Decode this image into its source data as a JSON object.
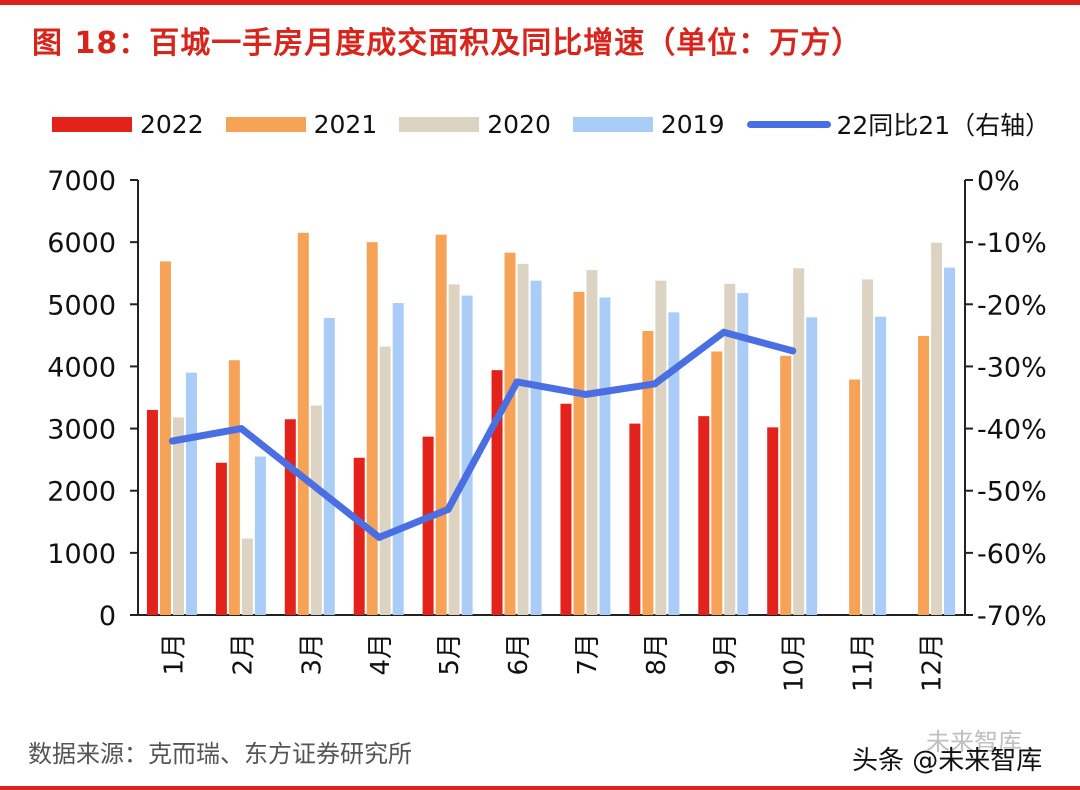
{
  "title": "图 18：百城一手房月度成交面积及同比增速（单位：万方）",
  "source": "数据来源：克而瑞、东方证券研究所",
  "watermark_top": "未来智库",
  "watermark_bottom": "头条 @未来智库",
  "colors": {
    "title": "#d9241b",
    "s2022": "#e3231b",
    "s2021": "#f6a358",
    "s2020": "#ddd3c2",
    "s2019": "#a9cdf7",
    "yoy": "#4a6fe3"
  },
  "legend": {
    "s2022": "2022",
    "s2021": "2021",
    "s2020": "2020",
    "s2019": "2019",
    "yoy": "22同比21（右轴）"
  },
  "chart_data": {
    "type": "bar",
    "categories": [
      "1月",
      "2月",
      "3月",
      "4月",
      "5月",
      "6月",
      "7月",
      "8月",
      "9月",
      "10月",
      "11月",
      "12月"
    ],
    "series": [
      {
        "name": "2022",
        "key": "s2022",
        "values": [
          3300,
          2450,
          3150,
          2530,
          2870,
          3940,
          3400,
          3080,
          3200,
          3020,
          null,
          null
        ]
      },
      {
        "name": "2021",
        "key": "s2021",
        "values": [
          5690,
          4100,
          6150,
          6000,
          6120,
          5830,
          5200,
          4570,
          4240,
          4170,
          3790,
          4490
        ]
      },
      {
        "name": "2020",
        "key": "s2020",
        "values": [
          3180,
          1230,
          3370,
          4320,
          5320,
          5650,
          5550,
          5380,
          5330,
          5580,
          5400,
          5990
        ]
      },
      {
        "name": "2019",
        "key": "s2019",
        "values": [
          3900,
          2550,
          4780,
          5020,
          5140,
          5380,
          5110,
          4870,
          5180,
          4790,
          4800,
          5590
        ]
      }
    ],
    "line_series": {
      "name": "22同比21（右轴）",
      "key": "yoy",
      "axis": "right",
      "values": [
        -42,
        -40,
        null,
        -57.5,
        -53,
        -32.5,
        -34.5,
        -32.8,
        -24.5,
        -27.5,
        null,
        null
      ]
    },
    "ylim_left": [
      0,
      7000
    ],
    "yticks_left": [
      "7000",
      "6000",
      "5000",
      "4000",
      "3000",
      "2000",
      "1000",
      "0"
    ],
    "ylim_right": [
      -70,
      0
    ],
    "yticks_right": [
      "0%",
      "-10%",
      "-20%",
      "-30%",
      "-40%",
      "-50%",
      "-60%",
      "-70%"
    ],
    "legend_position": "top"
  }
}
